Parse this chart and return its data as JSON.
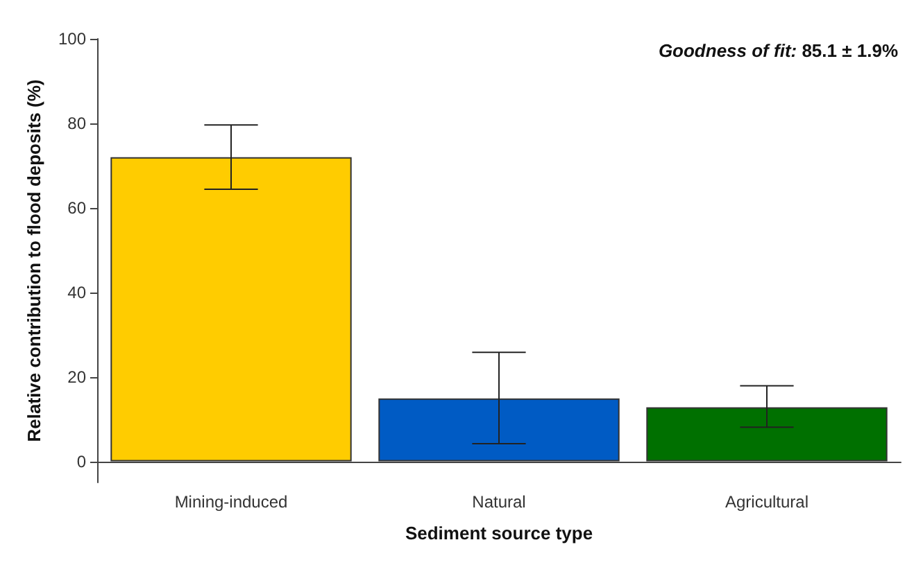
{
  "chart_data": {
    "type": "bar",
    "xlabel": "Sediment source type",
    "ylabel": "Relative contribution to flood deposits (%)",
    "categories": [
      "Mining-induced",
      "Natural",
      "Agricultural"
    ],
    "values": [
      72.0,
      14.9,
      12.8
    ],
    "colors": [
      "#ffcc00",
      "#005bc4",
      "#007000"
    ],
    "errors": [
      [
        64.4,
        79.6
      ],
      [
        4.2,
        25.8
      ],
      [
        8.1,
        17.9
      ]
    ],
    "ylim": [
      -5,
      100
    ],
    "yticks": [
      0,
      20,
      40,
      60,
      80,
      100
    ],
    "grid": false,
    "annotations": [
      "Goodness of fit: 85.1 ± 1.9%"
    ]
  }
}
